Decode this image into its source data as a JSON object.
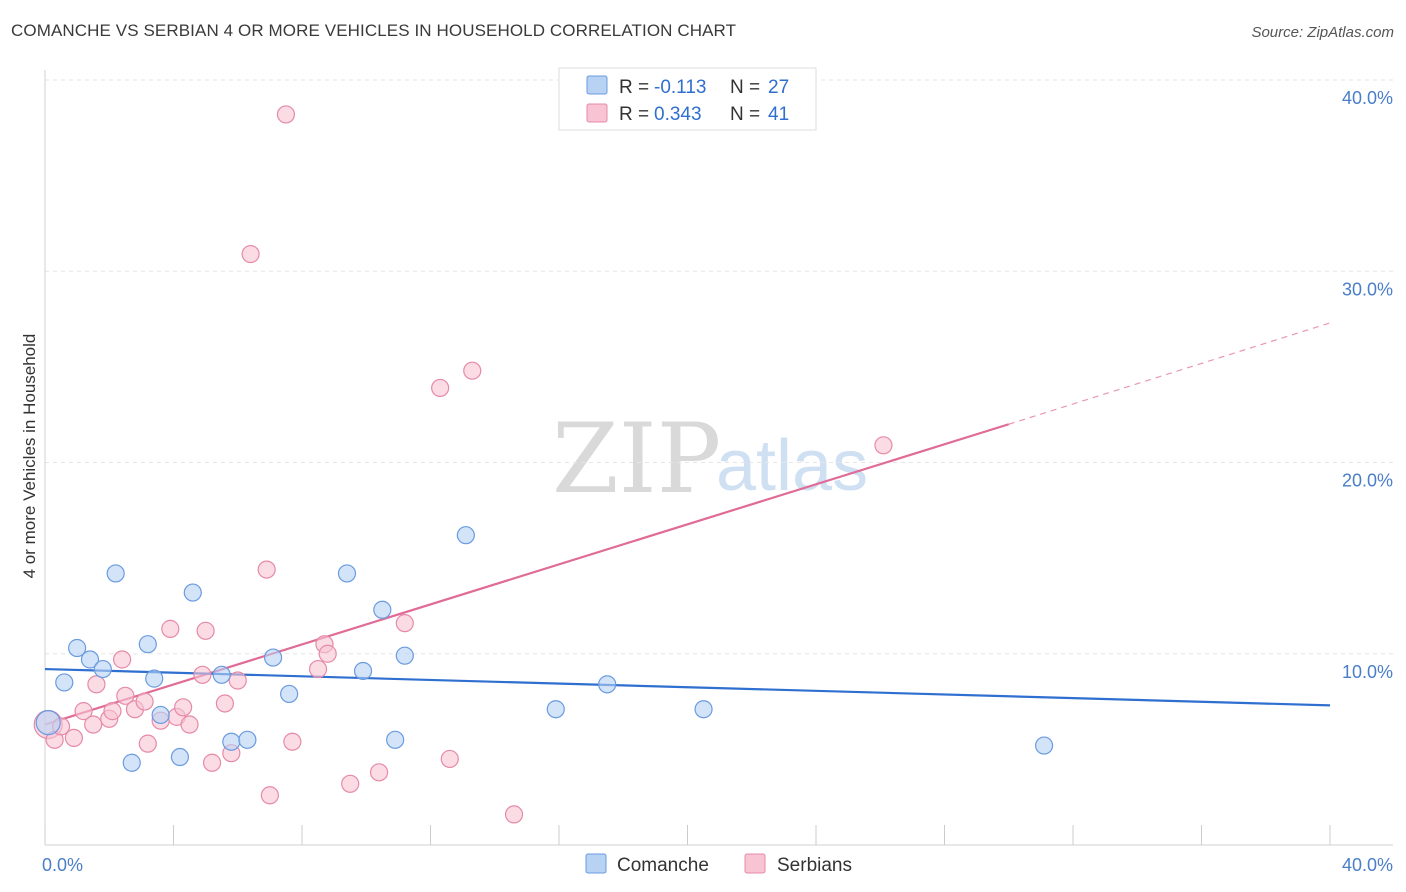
{
  "header": {
    "title": "COMANCHE VS SERBIAN 4 OR MORE VEHICLES IN HOUSEHOLD CORRELATION CHART",
    "source": "Source: ZipAtlas.com"
  },
  "watermark": {
    "zip": "ZIP",
    "atlas": "atlas"
  },
  "legend": {
    "rows": [
      {
        "r_label": "R =",
        "r_value": "-0.113",
        "n_label": "N =",
        "n_value": "27"
      },
      {
        "r_label": "R =",
        "r_value": "0.343",
        "n_label": "N =",
        "n_value": "41"
      }
    ]
  },
  "colors": {
    "comanche_fill": "#b8d2f4",
    "comanche_stroke": "#6a9be0",
    "comanche_line": "#2f6fd0",
    "serbians_fill": "#f8c4d4",
    "serbians_stroke": "#e68aa8",
    "serbians_line": "#e06b96",
    "grid": "#e6e6e6",
    "axis_text": "#4a7ec9"
  },
  "chart_data": {
    "type": "scatter",
    "title": "COMANCHE VS SERBIAN 4 OR MORE VEHICLES IN HOUSEHOLD CORRELATION CHART",
    "xlabel": "",
    "ylabel": "4 or more Vehicles in Household",
    "xlim": [
      0,
      40
    ],
    "ylim": [
      0,
      40
    ],
    "x_tick_labels": [
      "0.0%",
      "40.0%"
    ],
    "y_ticks": [
      10,
      20,
      30,
      40
    ],
    "y_tick_labels": [
      "10.0%",
      "20.0%",
      "30.0%",
      "40.0%"
    ],
    "legend_position": "top-center",
    "series": [
      {
        "name": "Comanche",
        "r": -0.113,
        "n": 27,
        "points": [
          {
            "x": 0.1,
            "y": 6.4
          },
          {
            "x": 0.6,
            "y": 8.5
          },
          {
            "x": 1.0,
            "y": 10.3
          },
          {
            "x": 1.4,
            "y": 9.7
          },
          {
            "x": 1.8,
            "y": 9.2
          },
          {
            "x": 2.2,
            "y": 14.2
          },
          {
            "x": 2.7,
            "y": 4.3
          },
          {
            "x": 3.2,
            "y": 10.5
          },
          {
            "x": 3.4,
            "y": 8.7
          },
          {
            "x": 3.6,
            "y": 6.8
          },
          {
            "x": 4.2,
            "y": 4.6
          },
          {
            "x": 4.6,
            "y": 13.2
          },
          {
            "x": 5.5,
            "y": 8.9
          },
          {
            "x": 5.8,
            "y": 5.4
          },
          {
            "x": 6.3,
            "y": 5.5
          },
          {
            "x": 7.1,
            "y": 9.8
          },
          {
            "x": 7.6,
            "y": 7.9
          },
          {
            "x": 9.4,
            "y": 14.2
          },
          {
            "x": 9.9,
            "y": 9.1
          },
          {
            "x": 10.5,
            "y": 12.3
          },
          {
            "x": 10.9,
            "y": 5.5
          },
          {
            "x": 11.2,
            "y": 9.9
          },
          {
            "x": 13.1,
            "y": 16.2
          },
          {
            "x": 15.9,
            "y": 7.1
          },
          {
            "x": 17.5,
            "y": 8.4
          },
          {
            "x": 20.5,
            "y": 7.1
          },
          {
            "x": 31.1,
            "y": 5.2
          }
        ],
        "trend": {
          "x": [
            0,
            40
          ],
          "y": [
            9.2,
            7.3
          ]
        }
      },
      {
        "name": "Serbians",
        "r": 0.343,
        "n": 41,
        "points": [
          {
            "x": 0.1,
            "y": 6.3
          },
          {
            "x": 0.3,
            "y": 5.5
          },
          {
            "x": 0.5,
            "y": 6.2
          },
          {
            "x": 0.9,
            "y": 5.6
          },
          {
            "x": 1.2,
            "y": 7.0
          },
          {
            "x": 1.5,
            "y": 6.3
          },
          {
            "x": 1.6,
            "y": 8.4
          },
          {
            "x": 2.0,
            "y": 6.6
          },
          {
            "x": 2.1,
            "y": 7.0
          },
          {
            "x": 2.4,
            "y": 9.7
          },
          {
            "x": 2.5,
            "y": 7.8
          },
          {
            "x": 2.8,
            "y": 7.1
          },
          {
            "x": 3.1,
            "y": 7.5
          },
          {
            "x": 3.2,
            "y": 5.3
          },
          {
            "x": 3.6,
            "y": 6.5
          },
          {
            "x": 3.9,
            "y": 11.3
          },
          {
            "x": 4.1,
            "y": 6.7
          },
          {
            "x": 4.3,
            "y": 7.2
          },
          {
            "x": 4.5,
            "y": 6.3
          },
          {
            "x": 4.9,
            "y": 8.9
          },
          {
            "x": 5.0,
            "y": 11.2
          },
          {
            "x": 5.2,
            "y": 4.3
          },
          {
            "x": 5.6,
            "y": 7.4
          },
          {
            "x": 5.8,
            "y": 4.8
          },
          {
            "x": 6.0,
            "y": 8.6
          },
          {
            "x": 6.4,
            "y": 30.9
          },
          {
            "x": 6.9,
            "y": 14.4
          },
          {
            "x": 7.0,
            "y": 2.6
          },
          {
            "x": 7.5,
            "y": 38.2
          },
          {
            "x": 7.7,
            "y": 5.4
          },
          {
            "x": 8.5,
            "y": 9.2
          },
          {
            "x": 8.7,
            "y": 10.5
          },
          {
            "x": 8.8,
            "y": 10.0
          },
          {
            "x": 9.5,
            "y": 3.2
          },
          {
            "x": 10.4,
            "y": 3.8
          },
          {
            "x": 11.2,
            "y": 11.6
          },
          {
            "x": 12.3,
            "y": 23.9
          },
          {
            "x": 12.6,
            "y": 4.5
          },
          {
            "x": 13.3,
            "y": 24.8
          },
          {
            "x": 14.6,
            "y": 1.6
          },
          {
            "x": 26.1,
            "y": 20.9
          }
        ],
        "trend": {
          "x": [
            0,
            30.0
          ],
          "y": [
            6.3,
            22.0
          ]
        },
        "trend_dashed": {
          "x": [
            30.0,
            40
          ],
          "y": [
            22.0,
            27.3
          ]
        }
      }
    ]
  },
  "bottom_legend": {
    "items": [
      "Comanche",
      "Serbians"
    ]
  }
}
